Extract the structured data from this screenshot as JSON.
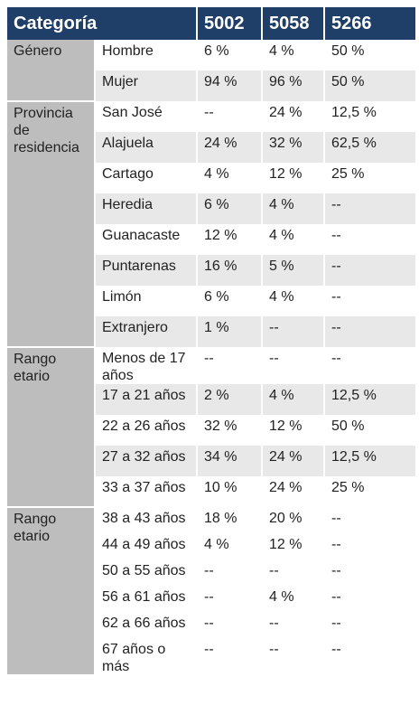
{
  "header": [
    "Categoría",
    "5002",
    "5058",
    "5266"
  ],
  "groups": [
    {
      "category": "Género",
      "rows": [
        {
          "label": "Hombre",
          "values": [
            "6 %",
            "4 %",
            "50 %"
          ]
        },
        {
          "label": "Mujer",
          "values": [
            "94 %",
            "96 %",
            "50 %"
          ]
        }
      ]
    },
    {
      "category": "Provincia de residencia",
      "rows": [
        {
          "label": "San José",
          "values": [
            "--",
            "24 %",
            "12,5 %"
          ]
        },
        {
          "label": "Alajuela",
          "values": [
            "24 %",
            "32 %",
            "62,5 %"
          ]
        },
        {
          "label": "Cartago",
          "values": [
            "4 %",
            "12 %",
            "25 %"
          ]
        },
        {
          "label": "Heredia",
          "values": [
            "6 %",
            "4 %",
            "--"
          ]
        },
        {
          "label": "Guanacaste",
          "values": [
            "12 %",
            "4 %",
            "--"
          ]
        },
        {
          "label": "Puntarenas",
          "values": [
            "16 %",
            "5 %",
            "--"
          ]
        },
        {
          "label": "Limón",
          "values": [
            "6 %",
            "4 %",
            "--"
          ]
        },
        {
          "label": "Extranjero",
          "values": [
            "1 %",
            "--",
            "--"
          ]
        }
      ]
    },
    {
      "category": "Rango etario",
      "rows": [
        {
          "label": "Menos de 17 años",
          "values": [
            "--",
            "--",
            "--"
          ]
        },
        {
          "label": "17 a 21 años",
          "values": [
            "2 %",
            "4 %",
            "12,5 %"
          ]
        },
        {
          "label": "22 a 26 años",
          "values": [
            "32 %",
            "12 %",
            "50 %"
          ]
        },
        {
          "label": "27 a 32 años",
          "values": [
            "34 %",
            "24 %",
            "12,5 %"
          ]
        },
        {
          "label": "33 a 37 años",
          "values": [
            "10 %",
            "24 %",
            "25 %"
          ]
        }
      ]
    },
    {
      "category": "Rango etario",
      "rows": [
        {
          "label": "38 a 43 años",
          "values": [
            "18 %",
            "20 %",
            "--"
          ]
        },
        {
          "label": "44 a 49 años",
          "values": [
            "4 %",
            "12 %",
            "--"
          ]
        },
        {
          "label": "50 a 55 años",
          "values": [
            "--",
            "--",
            "--"
          ]
        },
        {
          "label": "56 a 61 años",
          "values": [
            "--",
            "4 %",
            "--"
          ]
        },
        {
          "label": "62 a 66 años",
          "values": [
            "--",
            "--",
            "--"
          ]
        },
        {
          "label": "67 años o más",
          "values": [
            "--",
            "--",
            "--"
          ]
        }
      ]
    }
  ]
}
